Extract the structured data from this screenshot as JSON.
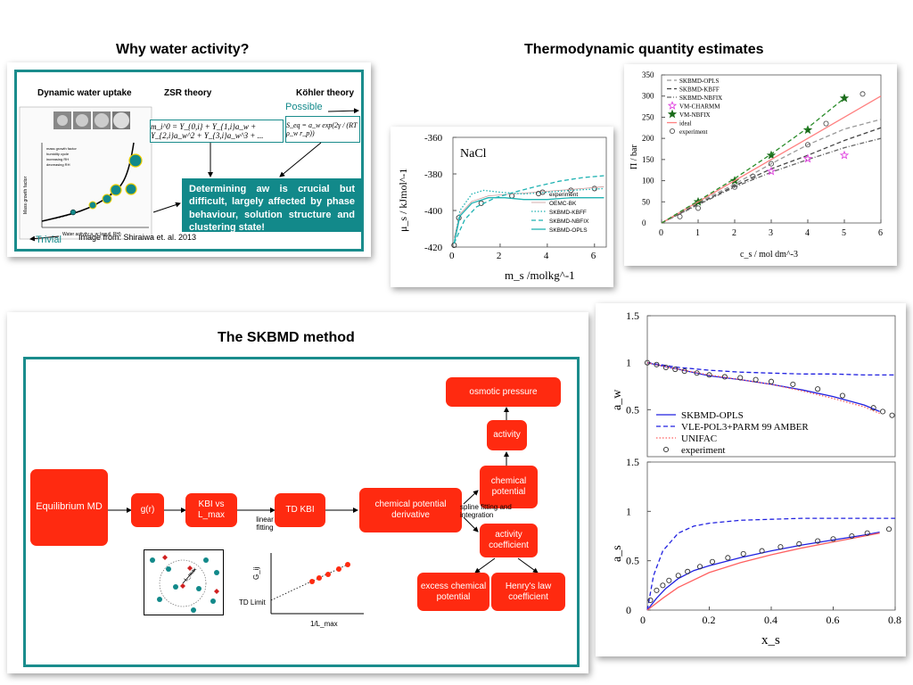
{
  "headings": {
    "water_activity": "Why water activity?",
    "thermo": "Thermodynamic quantity estimates",
    "skbmd": "The SKBMD method"
  },
  "water_panel": {
    "col1": "Dynamic water uptake",
    "col2": "ZSR theory",
    "col3": "Köhler theory",
    "possible": "Possible",
    "trivial": "Trivial",
    "source": "Image from: Shiraiwa et. al. 2013",
    "zsr_eq": "m_i^0 = Y_{0,i} + Y_{1,i}a_w + Y_{2,i}a_w^2 + Y_{3,i}a_w^3 + ...",
    "kohler_eq": "S_eq = a_w exp(2γ / (RT ρ_w r_p))",
    "callout": "Determining aw is crucial but difficult, largely affected by phase behaviour, solution structure and clustering state!",
    "inset_xlabel": "Water activity a_w (equil. RH)",
    "inset_ylabel": "Mass growth factor",
    "inset_legend": [
      "mass growth factor",
      "humidity cycle",
      "increasing RH",
      "decreasing RH"
    ]
  },
  "skbmd": {
    "boxes": {
      "eq_md": "Equilibrium MD",
      "gr": "g(r)",
      "kbi": "KBI vs L_max",
      "td_kbi": "TD KBI",
      "cpd": "chemical potential derivative",
      "cp": "chemical potential",
      "act": "activity",
      "osm": "osmotic pressure",
      "actc": "activity coefficient",
      "excess": "excess chemical potential",
      "henry": "Henry's law coefficient"
    },
    "linear_fitting": "linear fitting",
    "spline": "spline fitting and integration",
    "td_limit": "TD Limit",
    "g_label": "G_ij",
    "x_label": "1/L_max",
    "lmax_label": "L_max"
  },
  "colors": {
    "red": "#ff2a10",
    "teal": "#12898a"
  },
  "chart_data": [
    {
      "type": "line",
      "title": "NaCl",
      "xlabel": "m_s /molkg^-1",
      "ylabel": "μ_s / kJmol^-1",
      "xlim": [
        0,
        6.5
      ],
      "ylim": [
        -420,
        -360
      ],
      "xticks": [
        "0",
        "2",
        "4",
        "6"
      ],
      "yticks": [
        "-420",
        "-400",
        "-380",
        "-360"
      ],
      "series": [
        {
          "name": "experiment",
          "style": "circle",
          "x": [
            0.05,
            0.25,
            1.2,
            2.5,
            3.8,
            5.0,
            6.0
          ],
          "y": [
            -419,
            -404,
            -396,
            -392,
            -390,
            -389,
            -388
          ]
        },
        {
          "name": "OEMC-BK",
          "style": "thin",
          "x": [
            0.05,
            0.3,
            0.8,
            1.5,
            2.5,
            3.5,
            4.5,
            5.5,
            6.4
          ],
          "y": [
            -415,
            -402,
            -395,
            -392,
            -391,
            -390,
            -389,
            -388,
            -387
          ]
        },
        {
          "name": "SKBMD-KBFF",
          "style": "dotted",
          "x": [
            0.05,
            0.3,
            0.8,
            1.3,
            2.0,
            3.0,
            4.0,
            5.0,
            6.4
          ],
          "y": [
            -418,
            -400,
            -391,
            -389,
            -390,
            -391,
            -390,
            -389,
            -388
          ]
        },
        {
          "name": "SKBMD-NBFIX",
          "style": "dashed",
          "x": [
            0.05,
            0.5,
            1.0,
            1.8,
            2.6,
            3.5,
            4.5,
            5.5,
            6.4
          ],
          "y": [
            -418,
            -405,
            -398,
            -393,
            -390,
            -387,
            -384,
            -382,
            -381
          ]
        },
        {
          "name": "SKBMD-OPLS",
          "style": "solid",
          "x": [
            0.05,
            0.3,
            0.8,
            1.5,
            2.2,
            3.0,
            4.0,
            5.0,
            6.4
          ],
          "y": [
            -418,
            -403,
            -396,
            -393,
            -393,
            -394,
            -394,
            -393,
            -393
          ]
        }
      ]
    },
    {
      "type": "line",
      "xlabel": "c_s / mol dm^-3",
      "ylabel": "Π / bar",
      "xlim": [
        0,
        6
      ],
      "ylim": [
        0,
        350
      ],
      "xticks": [
        "0",
        "1",
        "2",
        "3",
        "4",
        "5",
        "6"
      ],
      "yticks": [
        "0",
        "50",
        "100",
        "150",
        "200",
        "250",
        "300",
        "350"
      ],
      "series": [
        {
          "name": "SKBMD-OPLS",
          "color": "#999999",
          "style": "dashed",
          "x": [
            0,
            1,
            2,
            3,
            4,
            5,
            6
          ],
          "y": [
            0,
            48,
            92,
            140,
            185,
            222,
            245
          ]
        },
        {
          "name": "SKBMD-KBFF",
          "color": "#444444",
          "style": "dashed",
          "x": [
            0,
            1,
            2,
            3,
            4,
            5,
            6
          ],
          "y": [
            0,
            45,
            88,
            128,
            160,
            195,
            225
          ]
        },
        {
          "name": "SKBMD-NBFIX",
          "color": "#666666",
          "style": "dotdash",
          "x": [
            0,
            1,
            2,
            3,
            4,
            5,
            6
          ],
          "y": [
            0,
            43,
            85,
            120,
            150,
            178,
            200
          ]
        },
        {
          "name": "VM-CHARMM",
          "color": "#e040e0",
          "style": "star-open",
          "x": [
            3,
            4,
            5
          ],
          "y": [
            122,
            152,
            160
          ]
        },
        {
          "name": "VM-NBFIX",
          "color": "#1a6b1a",
          "style": "star",
          "x": [
            1,
            2,
            3,
            4,
            5
          ],
          "y": [
            50,
            100,
            160,
            220,
            295
          ]
        },
        {
          "name": "ideal",
          "color": "#ff8080",
          "style": "solid",
          "x": [
            0,
            6
          ],
          "y": [
            0,
            300
          ]
        },
        {
          "name": "experiment",
          "color": "#555555",
          "style": "circle",
          "x": [
            0.5,
            1,
            2,
            2.5,
            3,
            4,
            4.5,
            5.5
          ],
          "y": [
            15,
            35,
            85,
            110,
            140,
            185,
            235,
            305
          ]
        },
        {
          "name": "",
          "color": "#2a8c2a",
          "style": "dashed",
          "x": [
            0,
            1,
            2,
            3,
            4,
            5
          ],
          "y": [
            0,
            52,
            105,
            163,
            225,
            295
          ]
        }
      ]
    },
    {
      "type": "line",
      "ylabel": "a_w",
      "xlim": [
        0,
        0.8
      ],
      "ylim": [
        0,
        1.5
      ],
      "yticks": [
        "0.5",
        "1",
        "1.5"
      ],
      "series": [
        {
          "name": "SKBMD-OPLS",
          "color": "#2020e0",
          "style": "solid",
          "x": [
            0,
            0.1,
            0.2,
            0.3,
            0.4,
            0.5,
            0.6,
            0.7,
            0.75
          ],
          "y": [
            1.0,
            0.93,
            0.86,
            0.82,
            0.77,
            0.71,
            0.64,
            0.55,
            0.48
          ]
        },
        {
          "name": "VLE-POL3+PARM 99 AMBER",
          "color": "#2020e0",
          "style": "dashed",
          "x": [
            0,
            0.1,
            0.2,
            0.3,
            0.4,
            0.5,
            0.6,
            0.7,
            0.8
          ],
          "y": [
            1.0,
            0.95,
            0.92,
            0.9,
            0.89,
            0.88,
            0.88,
            0.87,
            0.87
          ]
        },
        {
          "name": "UNIFAC",
          "color": "#ff6060",
          "style": "dotted",
          "x": [
            0,
            0.1,
            0.2,
            0.3,
            0.4,
            0.5,
            0.6,
            0.7,
            0.75
          ],
          "y": [
            1.0,
            0.93,
            0.87,
            0.82,
            0.77,
            0.7,
            0.62,
            0.53,
            0.46
          ]
        },
        {
          "name": "experiment",
          "color": "#333333",
          "style": "circle",
          "x": [
            0.0,
            0.03,
            0.06,
            0.09,
            0.12,
            0.16,
            0.2,
            0.25,
            0.3,
            0.35,
            0.4,
            0.47,
            0.55,
            0.63,
            0.73,
            0.76,
            0.79
          ],
          "y": [
            1.0,
            0.98,
            0.95,
            0.93,
            0.91,
            0.89,
            0.87,
            0.85,
            0.84,
            0.82,
            0.8,
            0.77,
            0.72,
            0.65,
            0.52,
            0.48,
            0.44
          ]
        }
      ]
    },
    {
      "type": "line",
      "xlabel": "x_s",
      "ylabel": "a_s",
      "xlim": [
        0,
        0.8
      ],
      "ylim": [
        0,
        1.5
      ],
      "xticks": [
        "0",
        "0.2",
        "0.4",
        "0.6",
        "0.8"
      ],
      "yticks": [
        "0",
        "0.5",
        "1",
        "1.5"
      ],
      "series": [
        {
          "name": "SKBMD-OPLS",
          "color": "#2020e0",
          "style": "solid",
          "x": [
            0,
            0.03,
            0.06,
            0.1,
            0.15,
            0.2,
            0.3,
            0.4,
            0.5,
            0.6,
            0.7,
            0.75
          ],
          "y": [
            0,
            0.12,
            0.22,
            0.32,
            0.4,
            0.45,
            0.53,
            0.6,
            0.66,
            0.71,
            0.76,
            0.79
          ]
        },
        {
          "name": "VLE-POL3+PARM 99 AMBER",
          "color": "#2020e0",
          "style": "dashed",
          "x": [
            0,
            0.02,
            0.05,
            0.1,
            0.15,
            0.2,
            0.3,
            0.4,
            0.5,
            0.6,
            0.7,
            0.8
          ],
          "y": [
            0,
            0.35,
            0.6,
            0.78,
            0.85,
            0.88,
            0.91,
            0.92,
            0.93,
            0.93,
            0.93,
            0.93
          ]
        },
        {
          "name": "UNIFAC",
          "color": "#ff6060",
          "style": "solid",
          "x": [
            0,
            0.05,
            0.1,
            0.2,
            0.3,
            0.4,
            0.5,
            0.6,
            0.7,
            0.75
          ],
          "y": [
            0,
            0.12,
            0.23,
            0.38,
            0.48,
            0.56,
            0.63,
            0.69,
            0.75,
            0.78
          ]
        },
        {
          "name": "experiment",
          "color": "#333333",
          "style": "circle",
          "x": [
            0.01,
            0.03,
            0.05,
            0.07,
            0.1,
            0.13,
            0.17,
            0.21,
            0.26,
            0.31,
            0.37,
            0.43,
            0.49,
            0.55,
            0.6,
            0.66,
            0.71,
            0.78
          ],
          "y": [
            0.1,
            0.2,
            0.25,
            0.3,
            0.35,
            0.39,
            0.44,
            0.49,
            0.53,
            0.57,
            0.6,
            0.64,
            0.67,
            0.7,
            0.72,
            0.75,
            0.78,
            0.82
          ]
        }
      ]
    }
  ]
}
